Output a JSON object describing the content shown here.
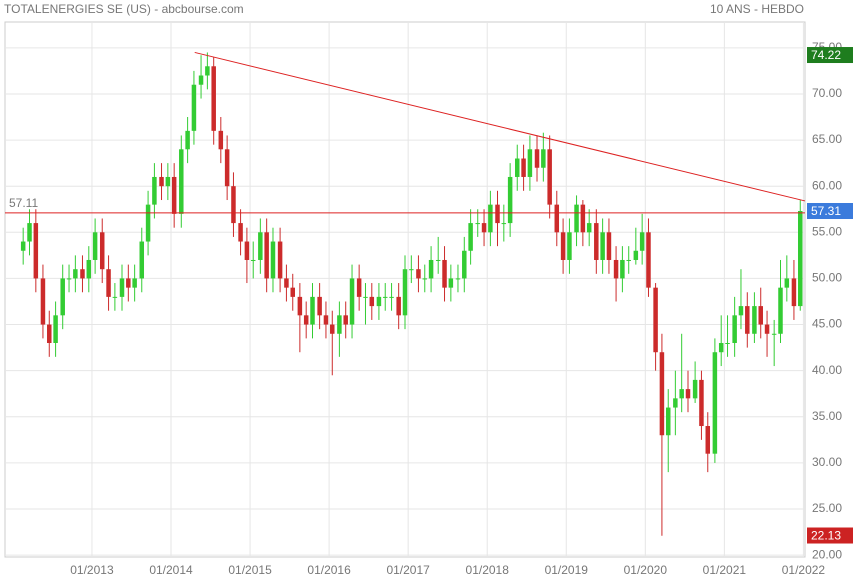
{
  "chart_data": {
    "type": "candlestick",
    "title": "TOTALENERGIES SE (US) - abcbourse.com",
    "subtitle": "10 ANS - HEBDO",
    "up_color": "#33cc33",
    "down_color": "#cc2b2b",
    "grid": true,
    "x": [
      2012.13,
      2012.21,
      2012.29,
      2012.38,
      2012.46,
      2012.54,
      2012.63,
      2012.71,
      2012.79,
      2012.88,
      2012.96,
      2013.04,
      2013.13,
      2013.21,
      2013.29,
      2013.38,
      2013.46,
      2013.54,
      2013.63,
      2013.71,
      2013.79,
      2013.88,
      2013.96,
      2014.04,
      2014.13,
      2014.21,
      2014.29,
      2014.38,
      2014.46,
      2014.54,
      2014.63,
      2014.71,
      2014.79,
      2014.88,
      2014.96,
      2015.04,
      2015.13,
      2015.21,
      2015.29,
      2015.38,
      2015.46,
      2015.54,
      2015.63,
      2015.71,
      2015.79,
      2015.88,
      2015.96,
      2016.04,
      2016.13,
      2016.21,
      2016.29,
      2016.38,
      2016.46,
      2016.54,
      2016.63,
      2016.71,
      2016.79,
      2016.88,
      2016.96,
      2017.04,
      2017.13,
      2017.21,
      2017.29,
      2017.38,
      2017.46,
      2017.54,
      2017.63,
      2017.71,
      2017.79,
      2017.88,
      2017.96,
      2018.04,
      2018.13,
      2018.21,
      2018.29,
      2018.38,
      2018.46,
      2018.54,
      2018.63,
      2018.71,
      2018.79,
      2018.88,
      2018.96,
      2019.04,
      2019.13,
      2019.21,
      2019.29,
      2019.38,
      2019.46,
      2019.54,
      2019.63,
      2019.71,
      2019.79,
      2019.88,
      2019.96,
      2020.04,
      2020.13,
      2020.21,
      2020.29,
      2020.38,
      2020.46,
      2020.54,
      2020.63,
      2020.71,
      2020.79,
      2020.88,
      2020.96,
      2021.04,
      2021.13,
      2021.21,
      2021.29,
      2021.38,
      2021.46,
      2021.54,
      2021.63,
      2021.71,
      2021.79,
      2021.88,
      2021.96
    ],
    "open": [
      53,
      54,
      56,
      50,
      45,
      43,
      46,
      50,
      50,
      51,
      50,
      52,
      55,
      51,
      48,
      48,
      50,
      49,
      50,
      54,
      58,
      61,
      60,
      61,
      57,
      64,
      66,
      71,
      72,
      73,
      66,
      64,
      60,
      56,
      54,
      52,
      52,
      55,
      50,
      54,
      50,
      49,
      48,
      46,
      45,
      48,
      46,
      45,
      44,
      46,
      45,
      50,
      48,
      48,
      47,
      48,
      48,
      48,
      46,
      51,
      51,
      50,
      50,
      52,
      52,
      49,
      50,
      50,
      53,
      56,
      56,
      55,
      58,
      56,
      56,
      61,
      63,
      61,
      64,
      62,
      64,
      58,
      55,
      52,
      55,
      58,
      55,
      56,
      52,
      55,
      52,
      50,
      52,
      52,
      53,
      55,
      49,
      42,
      33,
      36,
      37,
      38,
      37,
      39,
      34,
      31,
      42,
      43,
      43,
      46,
      47,
      44,
      47,
      45,
      44,
      44,
      49,
      50,
      47
    ],
    "high": [
      55.5,
      57.5,
      57.5,
      51.5,
      46.5,
      47.5,
      51.5,
      51.5,
      52.5,
      52.5,
      53.5,
      56.5,
      56.5,
      52.5,
      49.5,
      51.5,
      51.5,
      51.5,
      55.5,
      59.5,
      62.5,
      62.5,
      62.5,
      62.5,
      65.5,
      67.5,
      72.5,
      74.2,
      74.5,
      74,
      67.5,
      65.5,
      61.5,
      57.5,
      55.5,
      54,
      56.5,
      56.5,
      55.5,
      55.5,
      51.5,
      50.5,
      49.5,
      47.5,
      49.5,
      49.5,
      47.5,
      46.5,
      47.5,
      47.5,
      51.5,
      51.5,
      49.5,
      49.5,
      49.5,
      49.5,
      49.5,
      49.5,
      52.5,
      52.5,
      52.5,
      51.5,
      53.5,
      54.5,
      53.5,
      51.5,
      51.5,
      54.5,
      57.5,
      57.5,
      57.5,
      59.5,
      59.5,
      58,
      62.5,
      64.5,
      64.5,
      65.5,
      65.5,
      65.8,
      65.5,
      59.5,
      56.5,
      56.5,
      59,
      58.5,
      57.5,
      57.5,
      56.5,
      56.5,
      53.5,
      53.5,
      53.5,
      55.5,
      57,
      56.5,
      49.5,
      44,
      38,
      40,
      44,
      40,
      41,
      40,
      35.5,
      43.5,
      46,
      46,
      48,
      51,
      48.5,
      48.5,
      49,
      46.5,
      45.5,
      52,
      52.5,
      52,
      58.5
    ],
    "low": [
      51.5,
      52.5,
      48.5,
      43.5,
      41.5,
      41.5,
      44.5,
      48.5,
      48.5,
      48.5,
      48.5,
      50.5,
      49.5,
      46.5,
      46.5,
      46.5,
      47.5,
      47.5,
      48.5,
      52.5,
      56.5,
      58.5,
      58.5,
      55.5,
      55.5,
      62.5,
      64.5,
      69.5,
      70.5,
      64.5,
      62.5,
      58.5,
      54.5,
      52.5,
      49.5,
      50,
      50.5,
      48.5,
      48.5,
      48.5,
      47.5,
      46.5,
      42,
      43.5,
      43.5,
      44.5,
      43.5,
      39.5,
      41.5,
      43.5,
      43.5,
      46.5,
      45,
      45.5,
      45.5,
      46.5,
      46.5,
      44.5,
      44.5,
      49.5,
      48.5,
      48.5,
      48.5,
      50.5,
      47.5,
      47.5,
      48.5,
      48.5,
      51.5,
      54.5,
      53.5,
      53.5,
      53.5,
      54,
      54.5,
      59.5,
      59.5,
      59.5,
      60.5,
      60.5,
      56.5,
      53.5,
      50.5,
      50.5,
      53.5,
      53.5,
      53.5,
      50.5,
      50.5,
      50.5,
      47.5,
      48.5,
      50.5,
      51.5,
      51.5,
      48,
      40,
      22.1,
      29,
      33,
      35.5,
      35.5,
      36.5,
      32.5,
      29,
      30,
      40.5,
      41.5,
      41.5,
      44.5,
      42.5,
      43,
      43.5,
      41.5,
      40.5,
      43,
      47.5,
      45.5,
      46.5
    ],
    "close": [
      54,
      56,
      50,
      45,
      43,
      46,
      50,
      50,
      51,
      50,
      52,
      55,
      51,
      48,
      48,
      50,
      49,
      50,
      54,
      58,
      61,
      60,
      61,
      57,
      64,
      66,
      71,
      72,
      73,
      66,
      64,
      60,
      56,
      54,
      52,
      52,
      55,
      50,
      54,
      50,
      49,
      48,
      46,
      45,
      48,
      46,
      45,
      44,
      46,
      45,
      50,
      48,
      48,
      47,
      48,
      48,
      48,
      46,
      51,
      51,
      50,
      50,
      52,
      52,
      49,
      50,
      50,
      53,
      56,
      56,
      55,
      58,
      56,
      56,
      61,
      63,
      61,
      64,
      62,
      64,
      58,
      55,
      52,
      55,
      58,
      55,
      56,
      52,
      55,
      52,
      50,
      52,
      52,
      53,
      55,
      49,
      42,
      33,
      36,
      37,
      38,
      37,
      39,
      34,
      31,
      42,
      43,
      43,
      46,
      47,
      44,
      47,
      45,
      44,
      44,
      49,
      50,
      47,
      57.31
    ],
    "xlim": [
      2011.9,
      2022.02
    ],
    "xticks": [
      {
        "value": 2013,
        "label": "01/2013"
      },
      {
        "value": 2014,
        "label": "01/2014"
      },
      {
        "value": 2015,
        "label": "01/2015"
      },
      {
        "value": 2016,
        "label": "01/2016"
      },
      {
        "value": 2017,
        "label": "01/2017"
      },
      {
        "value": 2018,
        "label": "01/2018"
      },
      {
        "value": 2019,
        "label": "01/2019"
      },
      {
        "value": 2020,
        "label": "01/2020"
      },
      {
        "value": 2021,
        "label": "01/2021"
      },
      {
        "value": 2022,
        "label": "01/2022"
      }
    ],
    "ylim": [
      19.8,
      77.8
    ],
    "yticks": [
      {
        "value": 20,
        "label": "20.00"
      },
      {
        "value": 25,
        "label": "25.00"
      },
      {
        "value": 30,
        "label": "30.00"
      },
      {
        "value": 35,
        "label": "35.00"
      },
      {
        "value": 40,
        "label": "40.00"
      },
      {
        "value": 45,
        "label": "45.00"
      },
      {
        "value": 50,
        "label": "50.00"
      },
      {
        "value": 55,
        "label": "55.00"
      },
      {
        "value": 60,
        "label": "60.00"
      },
      {
        "value": 65,
        "label": "65.00"
      },
      {
        "value": 70,
        "label": "70.00"
      },
      {
        "value": 75,
        "label": "75.00"
      }
    ],
    "hline": {
      "value": 57.11,
      "label": "57.11",
      "color": "#dd2222"
    },
    "trendline": {
      "x": [
        2014.3,
        2022.02
      ],
      "y": [
        74.5,
        58.4
      ],
      "color": "#dd2222"
    },
    "badges": [
      {
        "value": 74.22,
        "label": "74.22",
        "color": "#1e7d1e"
      },
      {
        "value": 57.31,
        "label": "57.31",
        "color": "#3b7bdc"
      },
      {
        "value": 22.13,
        "label": "22.13",
        "color": "#cc2222"
      }
    ]
  }
}
